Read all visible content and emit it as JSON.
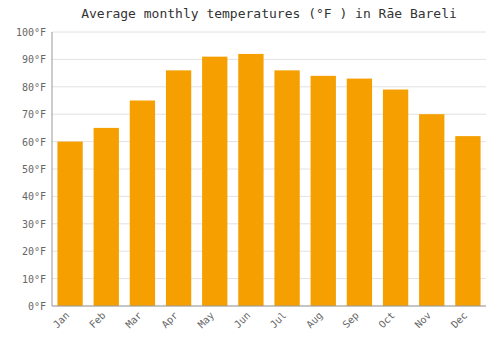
{
  "chart_data": {
    "type": "bar",
    "title": "Average monthly temperatures (°F ) in Rāe Bareli",
    "categories": [
      "Jan",
      "Feb",
      "Mar",
      "Apr",
      "May",
      "Jun",
      "Jul",
      "Aug",
      "Sep",
      "Oct",
      "Nov",
      "Dec"
    ],
    "values": [
      60,
      65,
      75,
      86,
      91,
      92,
      86,
      84,
      83,
      79,
      70,
      62
    ],
    "color": "#F5A000",
    "ylim": [
      0,
      100
    ],
    "yticks": [
      {
        "value": 0,
        "label": "0°F"
      },
      {
        "value": 10,
        "label": "10°F"
      },
      {
        "value": 20,
        "label": "20°F"
      },
      {
        "value": 30,
        "label": "30°F"
      },
      {
        "value": 40,
        "label": "40°F"
      },
      {
        "value": 50,
        "label": "50°F"
      },
      {
        "value": 60,
        "label": "60°F"
      },
      {
        "value": 70,
        "label": "70°F"
      },
      {
        "value": 80,
        "label": "80°F"
      },
      {
        "value": 90,
        "label": "90°F"
      },
      {
        "value": 100,
        "label": "100°F"
      }
    ],
    "grid": true
  }
}
